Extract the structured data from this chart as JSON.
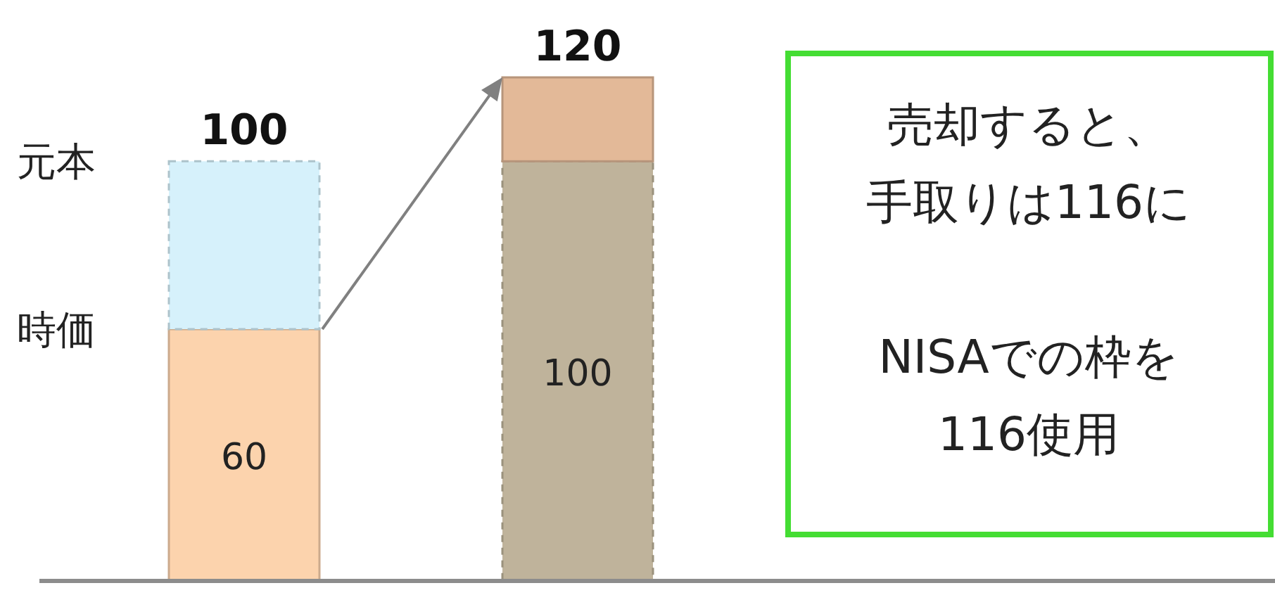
{
  "chart_data": {
    "type": "bar",
    "stacked": true,
    "categories": [
      null,
      null
    ],
    "series": [
      {
        "colors": [
          "#fcd3ad",
          "#bfb39b"
        ],
        "values": [
          60,
          100
        ],
        "value_labels": [
          "60",
          "100"
        ]
      },
      {
        "colors": [
          "#d6f1fb",
          "#e3b998"
        ],
        "values": [
          40,
          20
        ]
      }
    ],
    "totals": [
      "100",
      "120"
    ],
    "annotations": [
      "元本",
      "時価",
      "売却すると、手取りは116に",
      "NISAでの枠を116使用"
    ]
  }
}
